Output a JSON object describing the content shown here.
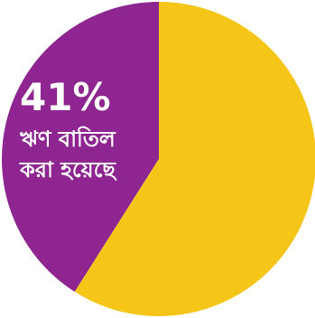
{
  "chart_data": {
    "type": "pie",
    "start_angle_deg": 0,
    "direction": "counterclockwise",
    "slices": [
      {
        "value": 41,
        "color": "#8e2590"
      },
      {
        "value": 59,
        "color": "#f5c518"
      }
    ],
    "annotation": {
      "value_text": "41%",
      "label_lines": [
        "ঋণ বাতিল",
        "করা হয়েছে"
      ]
    }
  }
}
